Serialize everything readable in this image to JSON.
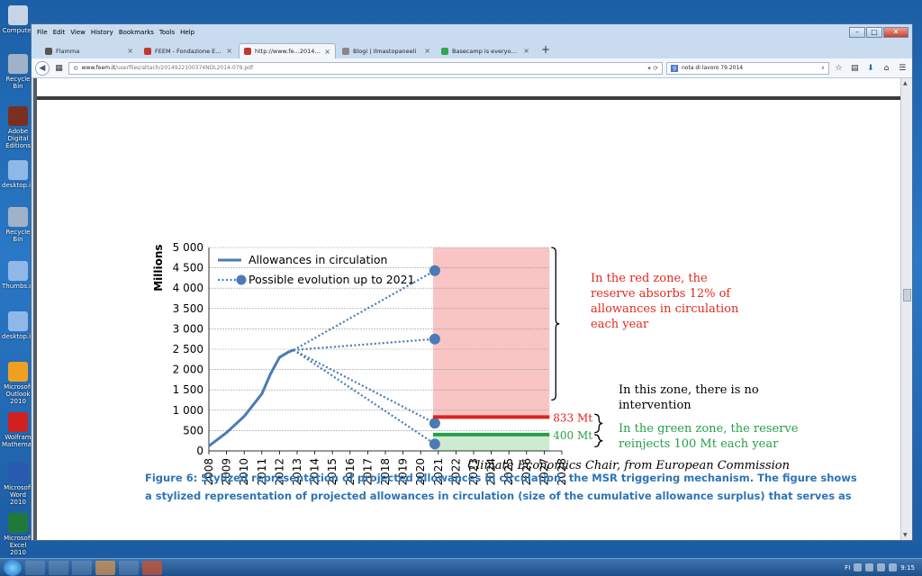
{
  "desktop": {
    "icons": [
      {
        "label": "Computer",
        "color": "#c8d4e6"
      },
      {
        "label": "Recycle Bin",
        "color": "#9fb2c8"
      },
      {
        "label": "Adobe Digital Editions",
        "color": "#7a3020"
      },
      {
        "label": "desktop.ini",
        "color": "#8fb8e8"
      },
      {
        "label": "Recycle Bin",
        "color": "#9fb2c8"
      },
      {
        "label": "Thumbs.db",
        "color": "#8fb8e8"
      },
      {
        "label": "desktop.ini",
        "color": "#8fb8e8"
      },
      {
        "label": "Microsoft Outlook 2010",
        "color": "#f0a020"
      },
      {
        "label": "Wolfram Mathematica",
        "color": "#d02020"
      },
      {
        "label": "Microsoft Word 2010",
        "color": "#2a5ab0"
      },
      {
        "label": "Microsoft Excel 2010",
        "color": "#1f7a3a"
      }
    ]
  },
  "menubar": {
    "items": [
      "File",
      "Edit",
      "View",
      "History",
      "Bookmarks",
      "Tools",
      "Help"
    ]
  },
  "tabs": [
    {
      "title": "Flamma",
      "color": "#555555",
      "active": false
    },
    {
      "title": "FEEM - Fondazione Eni Enri...",
      "color": "#c0392b",
      "active": false
    },
    {
      "title": "http://www.fe...2014-079.pdf",
      "color": "#c0392b",
      "active": true
    },
    {
      "title": "Blogi | Ilmastopaneeli",
      "color": "#888888",
      "active": false
    },
    {
      "title": "Basecamp is everyone's fav...",
      "color": "#2fa84f",
      "active": false
    }
  ],
  "navbar": {
    "url_host": "www.feem.it",
    "url_path": "/userfiles/attach/20149221003​74NDL2014-079.pdf",
    "search_value": "nota di lavoro 79.2014"
  },
  "chart_data": {
    "type": "line",
    "ylabel": "Millions",
    "ylim": [
      0,
      5000
    ],
    "yticks": [
      "0",
      "500",
      "1 000",
      "1 500",
      "2 000",
      "2 500",
      "3 000",
      "3 500",
      "4 000",
      "4 500",
      "5 000"
    ],
    "ytick_values": [
      0,
      500,
      1000,
      1500,
      2000,
      2500,
      3000,
      3500,
      4000,
      4500,
      5000
    ],
    "xticks": [
      "2008",
      "2009",
      "2010",
      "2011",
      "2012",
      "2013",
      "2014",
      "2015",
      "2016",
      "2017",
      "2018",
      "2019",
      "2020",
      "2021",
      "2022",
      "2023",
      "2024",
      "2025",
      "2026",
      "2027",
      "2028"
    ],
    "xlim": [
      2008,
      2028
    ],
    "legend": [
      {
        "label": "Allowances in circulation",
        "style": "solid"
      },
      {
        "label": "Possible evolution up to 2021",
        "style": "dotted"
      }
    ],
    "series": [
      {
        "name": "Allowances in circulation",
        "points": [
          [
            2008,
            120
          ],
          [
            2009,
            450
          ],
          [
            2010,
            850
          ],
          [
            2011,
            1400
          ],
          [
            2011.5,
            1900
          ],
          [
            2012,
            2300
          ],
          [
            2012.5,
            2430
          ],
          [
            2012.8,
            2480
          ]
        ]
      }
    ],
    "projections": {
      "start": [
        2012.8,
        2480
      ],
      "end_x": 2020.8,
      "end_values": [
        4430,
        2750,
        680,
        170
      ]
    },
    "zones": {
      "red_from_x": 2020.7,
      "red_to_x": 2027.3,
      "red_from_y": 833,
      "red_to_y": 5000,
      "green_from_y": 0,
      "green_to_y": 400
    },
    "thresholds": [
      {
        "value": 833,
        "label": "833 Mt",
        "color": "#e02020"
      },
      {
        "value": 400,
        "label": "400 Mt",
        "color": "#27a047"
      }
    ],
    "annotations": {
      "red": [
        "In the red zone, the",
        "reserve absorbs 12% of",
        "allowances in circulation",
        "each year"
      ],
      "none": [
        "In this zone, there is no",
        "intervention"
      ],
      "green": [
        "In the green zone, the reserve",
        "reinjects 100 Mt each year"
      ]
    },
    "source": "Climate Economics Chair, from European Commission",
    "colors": {
      "line": "#4a7bb5",
      "red_zone": "#f9c4c4",
      "green_zone": "#cdebd0",
      "red_text": "#e02a20",
      "green_text": "#27a047"
    }
  },
  "caption": {
    "line1": "Figure 6: Stylized representation of projected allowances in circulation: the MSR triggering mechanism. The figure shows",
    "line2": "a stylized representation of projected allowances in circulation (size of the cumulative allowance surplus) that serves as"
  },
  "taskbar": {
    "clock": "9:15",
    "lang": "FI"
  }
}
